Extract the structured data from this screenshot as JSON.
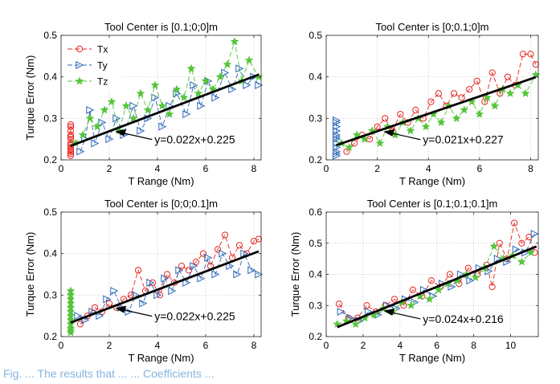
{
  "caption": "Fig. ... The results that ... ... Coefficients ...",
  "legend": {
    "entries": [
      {
        "label": "Tx",
        "color": "#e8241f",
        "marker": "circle"
      },
      {
        "label": "Ty",
        "color": "#2a66b8",
        "marker": "triangle-right"
      },
      {
        "label": "Tz",
        "color": "#55c43a",
        "marker": "star"
      }
    ],
    "placement": "top-left of first subplot"
  },
  "chart_data": [
    {
      "type": "scatter",
      "title": "Tool Center is [0.1;0;0]m",
      "xlabel": "T Range (Nm)",
      "ylabel": "Turque Error (Nm)",
      "xlim": [
        0,
        8.3
      ],
      "ylim": [
        0.2,
        0.5
      ],
      "xticks": [
        "0",
        "2",
        "4",
        "6",
        "8"
      ],
      "yticks": [
        "0.2",
        "0.3",
        "0.4",
        "0.5"
      ],
      "grid": true,
      "fit": {
        "label": "y=0.022x+0.225",
        "slope": 0.022,
        "intercept": 0.225,
        "x_range": [
          0.4,
          8.2
        ]
      },
      "series": [
        {
          "name": "Tx",
          "color": "#e8241f",
          "marker": "circle",
          "x": [
            0.4,
            0.4,
            0.4,
            0.4,
            0.4,
            0.4,
            0.4,
            0.4,
            0.4,
            0.4,
            0.4,
            0.4,
            0.4
          ],
          "y": [
            0.21,
            0.215,
            0.22,
            0.225,
            0.23,
            0.235,
            0.24,
            0.25,
            0.255,
            0.26,
            0.27,
            0.28,
            0.285
          ]
        },
        {
          "name": "Ty",
          "color": "#2a66b8",
          "marker": "triangle-right",
          "x": [
            0.8,
            1.0,
            1.2,
            1.4,
            1.7,
            2.0,
            2.3,
            2.6,
            3.0,
            3.3,
            3.6,
            3.9,
            4.2,
            4.5,
            4.8,
            5.2,
            5.5,
            5.8,
            6.1,
            6.4,
            6.8,
            7.1,
            7.4,
            7.7,
            8.0,
            8.2
          ],
          "y": [
            0.22,
            0.25,
            0.32,
            0.24,
            0.29,
            0.25,
            0.3,
            0.26,
            0.33,
            0.27,
            0.3,
            0.35,
            0.28,
            0.33,
            0.36,
            0.31,
            0.38,
            0.33,
            0.39,
            0.35,
            0.41,
            0.37,
            0.42,
            0.38,
            0.4,
            0.38
          ]
        },
        {
          "name": "Tz",
          "color": "#55c43a",
          "marker": "star",
          "x": [
            0.6,
            0.9,
            1.2,
            1.5,
            1.8,
            2.1,
            2.4,
            2.7,
            3.0,
            3.3,
            3.6,
            3.9,
            4.2,
            4.5,
            4.8,
            5.1,
            5.4,
            5.7,
            6.0,
            6.3,
            6.6,
            6.9,
            7.2,
            7.5,
            7.8,
            8.2
          ],
          "y": [
            0.24,
            0.26,
            0.3,
            0.28,
            0.32,
            0.34,
            0.27,
            0.33,
            0.3,
            0.36,
            0.32,
            0.38,
            0.33,
            0.31,
            0.37,
            0.35,
            0.42,
            0.36,
            0.39,
            0.37,
            0.4,
            0.43,
            0.485,
            0.39,
            0.44,
            0.4
          ]
        }
      ]
    },
    {
      "type": "scatter",
      "title": "Tool Center is [0;0.1;0]m",
      "xlabel": "T Range (Nm)",
      "ylabel": "",
      "xlim": [
        0,
        8.3
      ],
      "ylim": [
        0.2,
        0.5
      ],
      "xticks": [
        "0",
        "2",
        "4",
        "6",
        "8"
      ],
      "yticks": [
        "0.2",
        "0.3",
        "0.4",
        "0.5"
      ],
      "grid": true,
      "fit": {
        "label": "y=0.021x+0.227",
        "slope": 0.021,
        "intercept": 0.227,
        "x_range": [
          0.4,
          8.2
        ]
      },
      "series": [
        {
          "name": "Tx",
          "color": "#e8241f",
          "marker": "circle",
          "x": [
            0.8,
            1.1,
            1.4,
            1.7,
            2.0,
            2.3,
            2.6,
            2.9,
            3.2,
            3.5,
            3.8,
            4.1,
            4.4,
            4.7,
            5.0,
            5.3,
            5.6,
            5.9,
            6.2,
            6.5,
            6.8,
            7.1,
            7.4,
            7.7,
            8.0,
            8.2
          ],
          "y": [
            0.22,
            0.24,
            0.26,
            0.25,
            0.28,
            0.3,
            0.27,
            0.31,
            0.29,
            0.32,
            0.3,
            0.34,
            0.36,
            0.33,
            0.36,
            0.35,
            0.37,
            0.39,
            0.34,
            0.41,
            0.36,
            0.4,
            0.38,
            0.455,
            0.455,
            0.43
          ]
        },
        {
          "name": "Ty",
          "color": "#2a66b8",
          "marker": "triangle-right",
          "x": [
            0.4,
            0.4,
            0.4,
            0.4,
            0.4,
            0.4,
            0.4,
            0.4,
            0.4,
            0.4,
            0.4,
            0.4
          ],
          "y": [
            0.21,
            0.215,
            0.22,
            0.23,
            0.24,
            0.25,
            0.255,
            0.26,
            0.27,
            0.28,
            0.29,
            0.295
          ]
        },
        {
          "name": "Tz",
          "color": "#55c43a",
          "marker": "star",
          "x": [
            0.6,
            0.9,
            1.2,
            1.5,
            1.8,
            2.1,
            2.4,
            2.7,
            3.0,
            3.3,
            3.6,
            3.9,
            4.2,
            4.5,
            4.8,
            5.1,
            5.4,
            5.7,
            6.0,
            6.3,
            6.6,
            6.9,
            7.2,
            7.5,
            7.8,
            8.2
          ],
          "y": [
            0.24,
            0.23,
            0.26,
            0.25,
            0.27,
            0.24,
            0.28,
            0.26,
            0.29,
            0.27,
            0.3,
            0.28,
            0.31,
            0.29,
            0.33,
            0.3,
            0.32,
            0.34,
            0.31,
            0.35,
            0.33,
            0.37,
            0.36,
            0.38,
            0.36,
            0.405
          ]
        }
      ]
    },
    {
      "type": "scatter",
      "title": "Tool Center is [0;0;0.1]m",
      "xlabel": "T Range (Nm)",
      "ylabel": "Turque Error (Nm)",
      "xlim": [
        0,
        8.3
      ],
      "ylim": [
        0.2,
        0.5
      ],
      "xticks": [
        "0",
        "2",
        "4",
        "6",
        "8"
      ],
      "yticks": [
        "0.2",
        "0.3",
        "0.4",
        "0.5"
      ],
      "grid": true,
      "fit": {
        "label": "y=0.022x+0.225",
        "slope": 0.022,
        "intercept": 0.225,
        "x_range": [
          0.4,
          8.2
        ]
      },
      "series": [
        {
          "name": "Tx",
          "color": "#e8241f",
          "marker": "circle",
          "x": [
            0.8,
            1.1,
            1.4,
            1.7,
            2.0,
            2.3,
            2.6,
            2.9,
            3.2,
            3.5,
            3.8,
            4.1,
            4.4,
            4.7,
            5.0,
            5.3,
            5.6,
            5.9,
            6.2,
            6.5,
            6.8,
            7.1,
            7.4,
            7.7,
            8.0,
            8.2
          ],
          "y": [
            0.23,
            0.25,
            0.27,
            0.26,
            0.28,
            0.27,
            0.29,
            0.3,
            0.36,
            0.31,
            0.33,
            0.3,
            0.35,
            0.33,
            0.37,
            0.36,
            0.38,
            0.4,
            0.37,
            0.41,
            0.445,
            0.39,
            0.42,
            0.4,
            0.43,
            0.435
          ]
        },
        {
          "name": "Ty",
          "color": "#2a66b8",
          "marker": "triangle-right",
          "x": [
            0.7,
            1.0,
            1.3,
            1.6,
            1.9,
            2.2,
            2.5,
            2.8,
            3.1,
            3.4,
            3.7,
            4.0,
            4.3,
            4.6,
            4.9,
            5.2,
            5.5,
            5.8,
            6.1,
            6.4,
            6.7,
            7.0,
            7.3,
            7.6,
            7.9,
            8.2
          ],
          "y": [
            0.25,
            0.24,
            0.26,
            0.25,
            0.29,
            0.31,
            0.27,
            0.26,
            0.3,
            0.28,
            0.33,
            0.3,
            0.34,
            0.31,
            0.36,
            0.33,
            0.37,
            0.34,
            0.39,
            0.35,
            0.4,
            0.37,
            0.35,
            0.4,
            0.36,
            0.35
          ]
        },
        {
          "name": "Tz",
          "color": "#55c43a",
          "marker": "star",
          "x": [
            0.4,
            0.4,
            0.4,
            0.4,
            0.4,
            0.4,
            0.4,
            0.4,
            0.4,
            0.4,
            0.4,
            0.4
          ],
          "y": [
            0.21,
            0.215,
            0.22,
            0.23,
            0.24,
            0.25,
            0.26,
            0.27,
            0.28,
            0.29,
            0.3,
            0.31
          ]
        }
      ]
    },
    {
      "type": "scatter",
      "title": "Tool Center is [0.1;0.1;0.1]m",
      "xlabel": "T Range (Nm)",
      "ylabel": "Turque Error (Nm)",
      "xlim": [
        0,
        11.5
      ],
      "ylim": [
        0.2,
        0.6
      ],
      "xticks": [
        "0",
        "2",
        "4",
        "6",
        "8",
        "10"
      ],
      "yticks": [
        "0.2",
        "0.3",
        "0.4",
        "0.5",
        "0.6"
      ],
      "grid": true,
      "fit": {
        "label": "y=0.024x+0.216",
        "slope": 0.024,
        "intercept": 0.216,
        "x_range": [
          0.6,
          11.4
        ]
      },
      "series": [
        {
          "name": "Tx",
          "color": "#e8241f",
          "marker": "circle",
          "x": [
            0.7,
            1.2,
            1.7,
            2.2,
            2.7,
            3.2,
            3.7,
            4.2,
            4.7,
            5.2,
            5.7,
            6.2,
            6.7,
            7.2,
            7.7,
            8.2,
            8.7,
            9.0,
            9.4,
            9.8,
            10.2,
            10.6,
            11.0,
            11.3
          ],
          "y": [
            0.305,
            0.26,
            0.26,
            0.3,
            0.28,
            0.3,
            0.32,
            0.3,
            0.35,
            0.33,
            0.38,
            0.36,
            0.4,
            0.37,
            0.42,
            0.4,
            0.43,
            0.36,
            0.5,
            0.45,
            0.565,
            0.5,
            0.52,
            0.47
          ]
        },
        {
          "name": "Ty",
          "color": "#2a66b8",
          "marker": "triangle-right",
          "x": [
            0.8,
            1.3,
            1.8,
            2.3,
            2.8,
            3.3,
            3.8,
            4.3,
            4.8,
            5.3,
            5.8,
            6.3,
            6.8,
            7.3,
            7.8,
            8.3,
            8.8,
            9.3,
            9.8,
            10.3,
            10.8,
            11.3
          ],
          "y": [
            0.28,
            0.26,
            0.25,
            0.28,
            0.27,
            0.3,
            0.29,
            0.32,
            0.31,
            0.35,
            0.33,
            0.37,
            0.36,
            0.4,
            0.38,
            0.42,
            0.41,
            0.45,
            0.44,
            0.48,
            0.47,
            0.53
          ]
        },
        {
          "name": "Tz",
          "color": "#55c43a",
          "marker": "star",
          "x": [
            0.6,
            1.1,
            1.6,
            2.1,
            2.6,
            3.1,
            3.6,
            4.1,
            4.6,
            5.1,
            5.6,
            6.1,
            6.6,
            7.1,
            7.6,
            8.1,
            8.6,
            9.1,
            9.6,
            10.1,
            10.6,
            11.1
          ],
          "y": [
            0.24,
            0.25,
            0.24,
            0.26,
            0.27,
            0.29,
            0.28,
            0.31,
            0.3,
            0.33,
            0.32,
            0.35,
            0.37,
            0.38,
            0.4,
            0.39,
            0.42,
            0.49,
            0.45,
            0.46,
            0.44,
            0.47
          ]
        }
      ]
    }
  ]
}
